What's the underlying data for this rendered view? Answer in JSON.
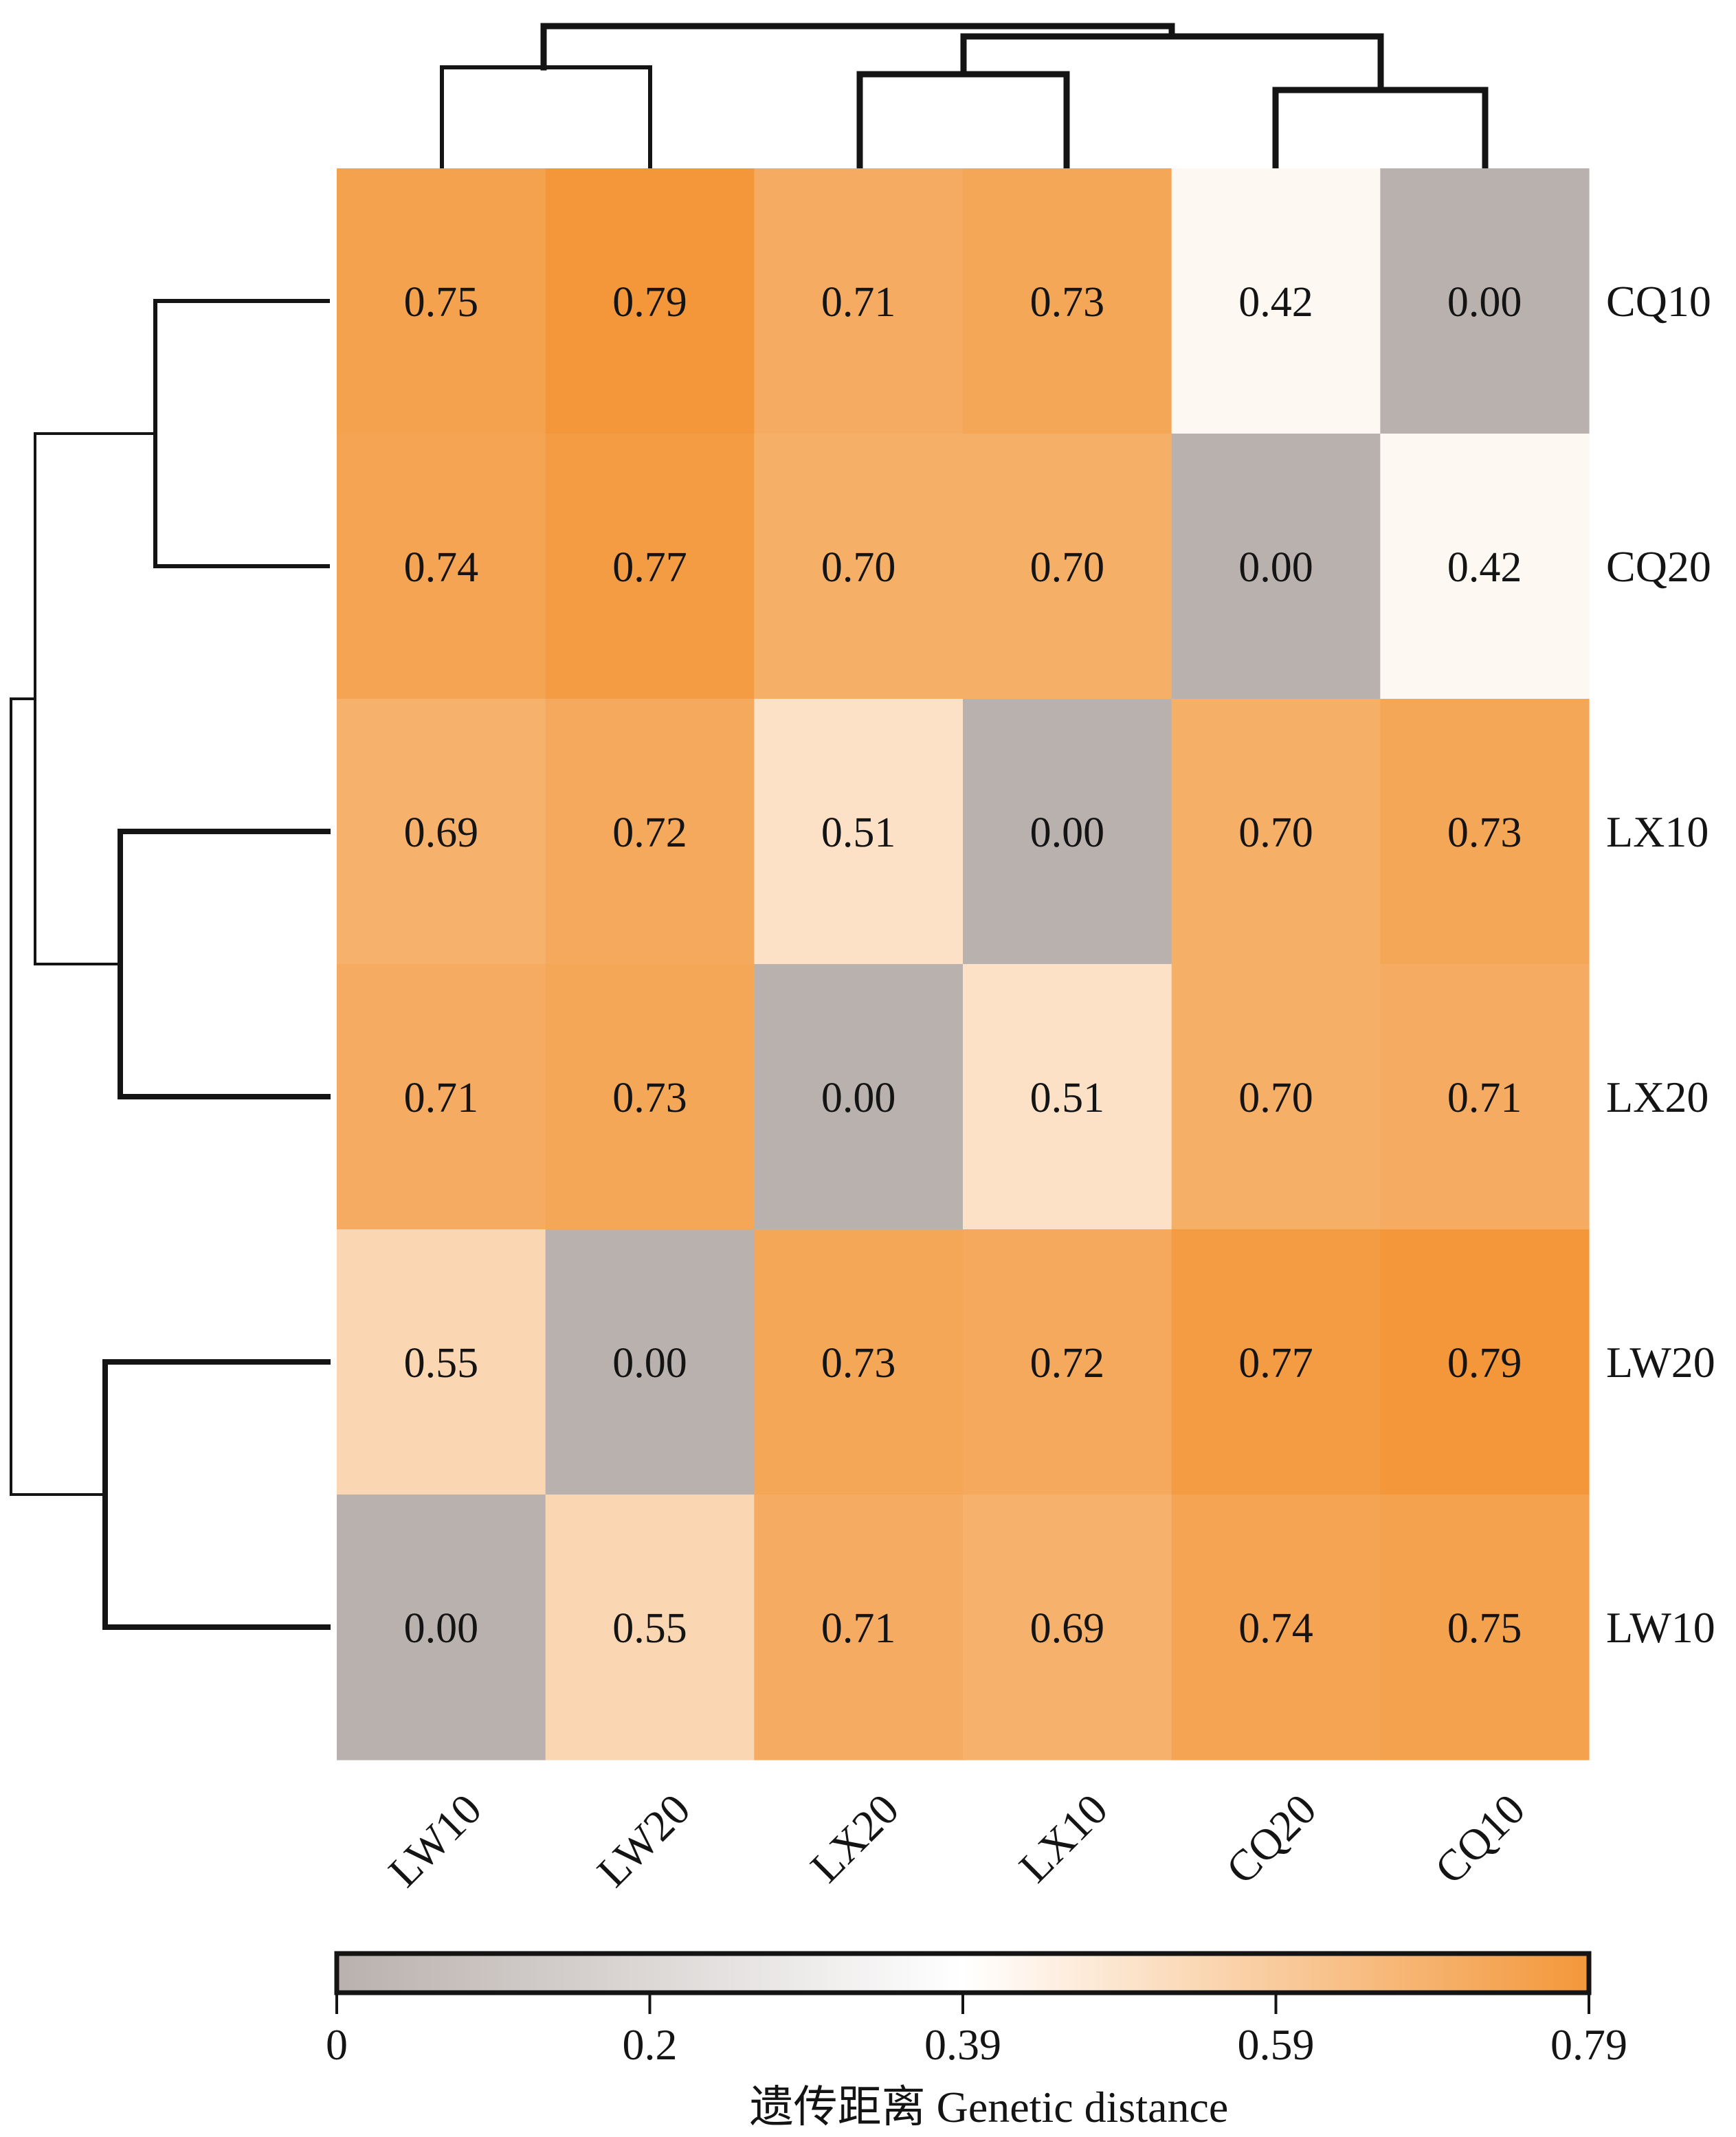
{
  "chart_data": {
    "type": "heatmap",
    "title": "",
    "row_labels": [
      "CQ10",
      "CQ20",
      "LX10",
      "LX20",
      "LW20",
      "LW10"
    ],
    "col_labels": [
      "LW10",
      "LW20",
      "LX20",
      "LX10",
      "CQ20",
      "CQ10"
    ],
    "values": [
      [
        0.75,
        0.79,
        0.71,
        0.73,
        0.42,
        0.0
      ],
      [
        0.74,
        0.77,
        0.7,
        0.7,
        0.0,
        0.42
      ],
      [
        0.69,
        0.72,
        0.51,
        0.0,
        0.7,
        0.73
      ],
      [
        0.71,
        0.73,
        0.0,
        0.51,
        0.7,
        0.71
      ],
      [
        0.55,
        0.0,
        0.73,
        0.72,
        0.77,
        0.79
      ],
      [
        0.0,
        0.55,
        0.71,
        0.69,
        0.74,
        0.75
      ]
    ],
    "value_labels": [
      [
        "0.75",
        "0.79",
        "0.71",
        "0.73",
        "0.42",
        "0.00"
      ],
      [
        "0.74",
        "0.77",
        "0.70",
        "0.70",
        "0.00",
        "0.42"
      ],
      [
        "0.69",
        "0.72",
        "0.51",
        "0.00",
        "0.70",
        "0.73"
      ],
      [
        "0.71",
        "0.73",
        "0.00",
        "0.51",
        "0.70",
        "0.71"
      ],
      [
        "0.55",
        "0.00",
        "0.73",
        "0.72",
        "0.77",
        "0.79"
      ],
      [
        "0.00",
        "0.55",
        "0.71",
        "0.69",
        "0.74",
        "0.75"
      ]
    ],
    "colorbar": {
      "label": "遗传距离 Genetic distance",
      "range": [
        0,
        0.79
      ],
      "ticks": [
        0,
        0.1975,
        0.395,
        0.5925,
        0.79
      ],
      "tick_labels": [
        "0",
        "0.2",
        "0.39",
        "0.59",
        "0.79"
      ],
      "colors": {
        "low": "#b9b1ae",
        "mid": "#ffffff",
        "high": "#f3973a"
      },
      "placement": "bottom"
    },
    "row_dendrogram": {
      "side": "left",
      "merges": [
        {
          "left": "CQ10",
          "right": "CQ20"
        },
        {
          "left": "LX10",
          "right": "LX20"
        },
        {
          "left": "CQ10+CQ20",
          "right": "LX10+LX20"
        },
        {
          "left": "LW20",
          "right": "LW10"
        },
        {
          "left": "CQ+LX",
          "right": "LW20+LW10"
        }
      ]
    },
    "col_dendrogram": {
      "side": "top",
      "merges": [
        {
          "left": "CQ20",
          "right": "CQ10"
        },
        {
          "left": "LW10",
          "right": "LW20"
        },
        {
          "left": "LX20",
          "right": "LX10"
        },
        {
          "left": "LX20+LX10",
          "right": "CQ20+CQ10"
        },
        {
          "left": "LW10+LW20",
          "right": "LX+CQ"
        }
      ]
    },
    "xlabel": "",
    "ylabel": "",
    "grid": false
  }
}
